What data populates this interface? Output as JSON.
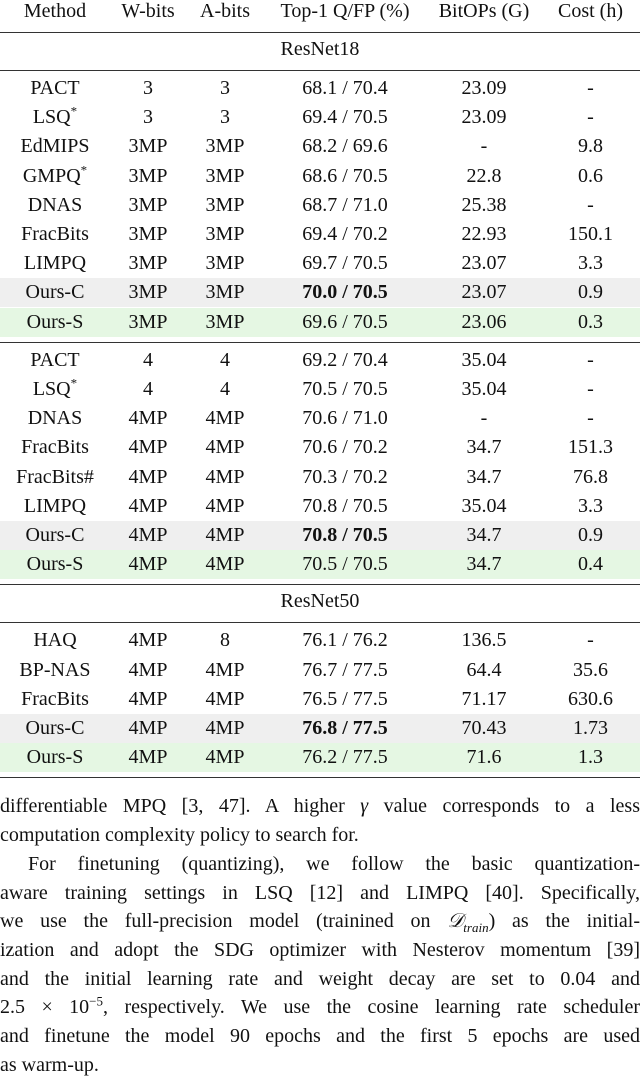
{
  "table": {
    "header": [
      "Method",
      "W-bits",
      "A-bits",
      "Top-1 Q/FP (%)",
      "BitOPs (G)",
      "Cost (h)"
    ],
    "sections": [
      {
        "title": "ResNet18",
        "rows": [
          {
            "cells": [
              "PACT",
              "3",
              "3",
              "68.1 / 70.4",
              "23.09",
              "-"
            ]
          },
          {
            "cells": [
              "LSQ",
              "3",
              "3",
              "69.4 / 70.5",
              "23.09",
              "-"
            ],
            "sup": "*"
          },
          {
            "cells": [
              "EdMIPS",
              "3MP",
              "3MP",
              "68.2 / 69.6",
              "-",
              "9.8"
            ]
          },
          {
            "cells": [
              "GMPQ",
              "3MP",
              "3MP",
              "68.6 / 70.5",
              "22.8",
              "0.6"
            ],
            "sup": "*"
          },
          {
            "cells": [
              "DNAS",
              "3MP",
              "3MP",
              "68.7 / 71.0",
              "25.38",
              "-"
            ]
          },
          {
            "cells": [
              "FracBits",
              "3MP",
              "3MP",
              "69.4 / 70.2",
              "22.93",
              "150.1"
            ]
          },
          {
            "cells": [
              "LIMPQ",
              "3MP",
              "3MP",
              "69.7 / 70.5",
              "23.07",
              "3.3"
            ]
          },
          {
            "cells": [
              "Ours-C",
              "3MP",
              "3MP",
              "70.0 / 70.5",
              "23.07",
              "0.9"
            ],
            "highlight": "#efefef",
            "bold_top1": true
          },
          {
            "cells": [
              "Ours-S",
              "3MP",
              "3MP",
              "69.6 / 70.5",
              "23.06",
              "0.3"
            ],
            "highlight": "#e5f7e3"
          }
        ]
      },
      {
        "rows": [
          {
            "cells": [
              "PACT",
              "4",
              "4",
              "69.2 / 70.4",
              "35.04",
              "-"
            ]
          },
          {
            "cells": [
              "LSQ",
              "4",
              "4",
              "70.5 / 70.5",
              "35.04",
              "-"
            ],
            "sup": "*"
          },
          {
            "cells": [
              "DNAS",
              "4MP",
              "4MP",
              "70.6 / 71.0",
              "-",
              "-"
            ]
          },
          {
            "cells": [
              "FracBits",
              "4MP",
              "4MP",
              "70.6 / 70.2",
              "34.7",
              "151.3"
            ]
          },
          {
            "cells": [
              "FracBits#",
              "4MP",
              "4MP",
              "70.3 / 70.2",
              "34.7",
              "76.8"
            ]
          },
          {
            "cells": [
              "LIMPQ",
              "4MP",
              "4MP",
              "70.8 / 70.5",
              "35.04",
              "3.3"
            ]
          },
          {
            "cells": [
              "Ours-C",
              "4MP",
              "4MP",
              "70.8 / 70.5",
              "34.7",
              "0.9"
            ],
            "highlight": "#efefef",
            "bold_top1": true
          },
          {
            "cells": [
              "Ours-S",
              "4MP",
              "4MP",
              "70.5 / 70.5",
              "34.7",
              "0.4"
            ],
            "highlight": "#e5f7e3"
          }
        ]
      },
      {
        "title": "ResNet50",
        "rows": [
          {
            "cells": [
              "HAQ",
              "4MP",
              "8",
              "76.1 / 76.2",
              "136.5",
              "-"
            ]
          },
          {
            "cells": [
              "BP-NAS",
              "4MP",
              "4MP",
              "76.7 / 77.5",
              "64.4",
              "35.6"
            ]
          },
          {
            "cells": [
              "FracBits",
              "4MP",
              "4MP",
              "76.5 / 77.5",
              "71.17",
              "630.6"
            ]
          },
          {
            "cells": [
              "Ours-C",
              "4MP",
              "4MP",
              "76.8 / 77.5",
              "70.43",
              "1.73"
            ],
            "highlight": "#efefef",
            "bold_top1": true
          },
          {
            "cells": [
              "Ours-S",
              "4MP",
              "4MP",
              "76.2 / 77.5",
              "71.6",
              "1.3"
            ],
            "highlight": "#e5f7e3"
          }
        ]
      }
    ]
  },
  "body": {
    "paragraphs": [
      {
        "lines": [
          [
            {
              "text": "differentiable MPQ [3, 47]. A higher "
            },
            {
              "text": "γ",
              "style": "i"
            },
            {
              "text": " value corresponds to a less"
            }
          ],
          [
            {
              "text": "computation complexity policy to search for."
            }
          ]
        ]
      },
      {
        "lines": [
          [
            {
              "text": "For finetuning (quantizing), we follow the basic quantization-"
            }
          ],
          [
            {
              "text": "aware training settings in LSQ [12] and LIMPQ [40]. Specifically,"
            }
          ],
          [
            {
              "text": "we use the full-precision model (trainined on "
            },
            {
              "text": "𝒟",
              "style": "i"
            },
            {
              "text": "train",
              "style": "sub"
            },
            {
              "text": ") as the initial-"
            }
          ],
          [
            {
              "text": "ization and adopt the SDG optimizer with Nesterov momentum [39]"
            }
          ],
          [
            {
              "text": "and the initial learning rate and weight decay are set to 0.04 and"
            }
          ],
          [
            {
              "text": "2.5 × 10"
            },
            {
              "text": "−5",
              "style": "sup"
            },
            {
              "text": ", respectively. We use the cosine learning rate scheduler"
            }
          ],
          [
            {
              "text": "and finetune the model 90 epochs and the first 5 epochs are used"
            }
          ],
          [
            {
              "text": "as warm-up."
            }
          ]
        ]
      }
    ]
  }
}
